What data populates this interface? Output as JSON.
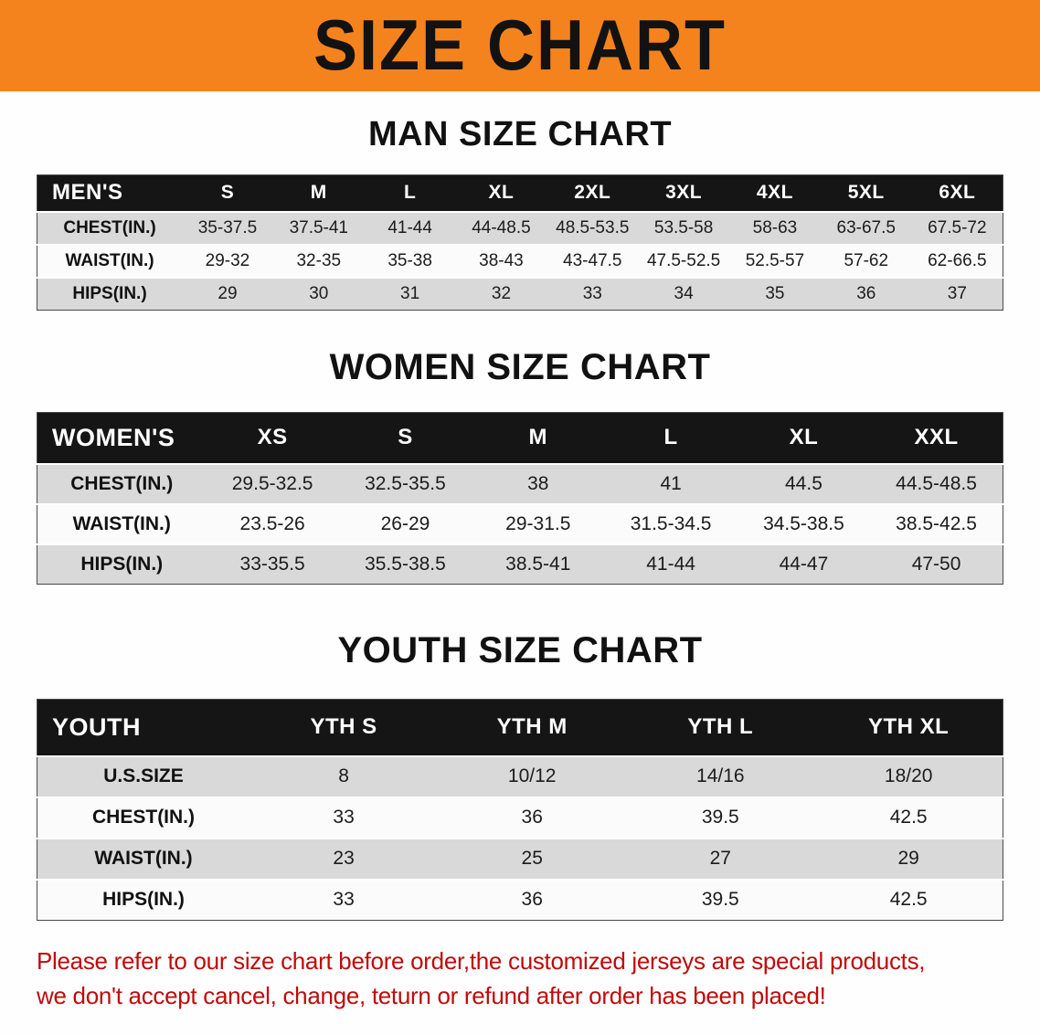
{
  "banner": {
    "title": "SIZE CHART"
  },
  "colors": {
    "banner_bg": "#f5831d",
    "table_header_bg": "#151515",
    "table_header_text": "#ffffff",
    "row_alt_bg": "#d9d9d9",
    "row_bg": "#fbfbfb",
    "disclaimer_text": "#c00a0a"
  },
  "sections": [
    {
      "id": "men",
      "heading": "MAN SIZE CHART",
      "table": {
        "header": [
          "MEN'S",
          "S",
          "M",
          "L",
          "XL",
          "2XL",
          "3XL",
          "4XL",
          "5XL",
          "6XL"
        ],
        "rows": [
          [
            "CHEST(IN.)",
            "35-37.5",
            "37.5-41",
            "41-44",
            "44-48.5",
            "48.5-53.5",
            "53.5-58",
            "58-63",
            "63-67.5",
            "67.5-72"
          ],
          [
            "WAIST(IN.)",
            "29-32",
            "32-35",
            "35-38",
            "38-43",
            "43-47.5",
            "47.5-52.5",
            "52.5-57",
            "57-62",
            "62-66.5"
          ],
          [
            "HIPS(IN.)",
            "29",
            "30",
            "31",
            "32",
            "33",
            "34",
            "35",
            "36",
            "37"
          ]
        ]
      }
    },
    {
      "id": "women",
      "heading": "WOMEN SIZE CHART",
      "table": {
        "header": [
          "WOMEN'S",
          "XS",
          "S",
          "M",
          "L",
          "XL",
          "XXL"
        ],
        "rows": [
          [
            "CHEST(IN.)",
            "29.5-32.5",
            "32.5-35.5",
            "38",
            "41",
            "44.5",
            "44.5-48.5"
          ],
          [
            "WAIST(IN.)",
            "23.5-26",
            "26-29",
            "29-31.5",
            "31.5-34.5",
            "34.5-38.5",
            "38.5-42.5"
          ],
          [
            "HIPS(IN.)",
            "33-35.5",
            "35.5-38.5",
            "38.5-41",
            "41-44",
            "44-47",
            "47-50"
          ]
        ]
      }
    },
    {
      "id": "youth",
      "heading": "YOUTH SIZE CHART",
      "table": {
        "header": [
          "YOUTH",
          "YTH S",
          "YTH M",
          "YTH L",
          "YTH XL"
        ],
        "rows": [
          [
            "U.S.SIZE",
            "8",
            "10/12",
            "14/16",
            "18/20"
          ],
          [
            "CHEST(IN.)",
            "33",
            "36",
            "39.5",
            "42.5"
          ],
          [
            "WAIST(IN.)",
            "23",
            "25",
            "27",
            "29"
          ],
          [
            "HIPS(IN.)",
            "33",
            "36",
            "39.5",
            "42.5"
          ]
        ]
      }
    }
  ],
  "footer": {
    "line1": "Please refer to our size chart before order,the customized jerseys are special products,",
    "line2": "we don't accept cancel, change, teturn or refund after order has been placed!"
  }
}
